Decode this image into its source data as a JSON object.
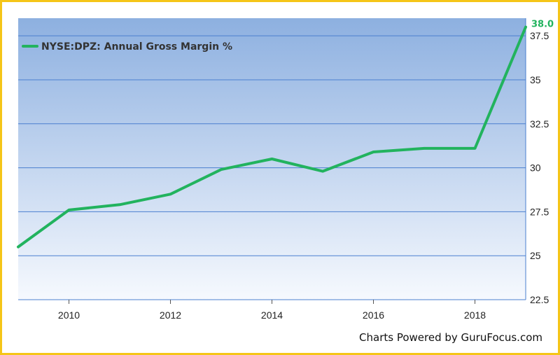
{
  "chart_data": {
    "type": "line",
    "title": "",
    "xlabel": "",
    "ylabel": "",
    "x": [
      2009,
      2010,
      2011,
      2012,
      2013,
      2014,
      2015,
      2016,
      2017,
      2018,
      2019
    ],
    "x_tick_labels": [
      "2010",
      "2012",
      "2014",
      "2016",
      "2018"
    ],
    "y_tick_labels": [
      "22.5",
      "25",
      "27.5",
      "30",
      "32.5",
      "35",
      "37.5"
    ],
    "xlim": [
      2009,
      2019
    ],
    "ylim": [
      22.5,
      38.5
    ],
    "grid": true,
    "legend_position": "top-left",
    "series": [
      {
        "name": "NYSE:DPZ: Annual Gross Margin %",
        "color": "#22b35e",
        "values": [
          25.5,
          27.6,
          27.9,
          28.5,
          29.9,
          30.5,
          29.8,
          30.9,
          31.1,
          31.1,
          38.0
        ]
      }
    ],
    "end_label": "38.0"
  },
  "footer": {
    "credit": "Charts Powered by GuruFocus.com"
  },
  "colors": {
    "border": "#f5c518",
    "plot_top": "#8db0e0",
    "plot_bottom": "#f6f9fe",
    "grid": "#4a7fcf",
    "line": "#22b35e"
  }
}
